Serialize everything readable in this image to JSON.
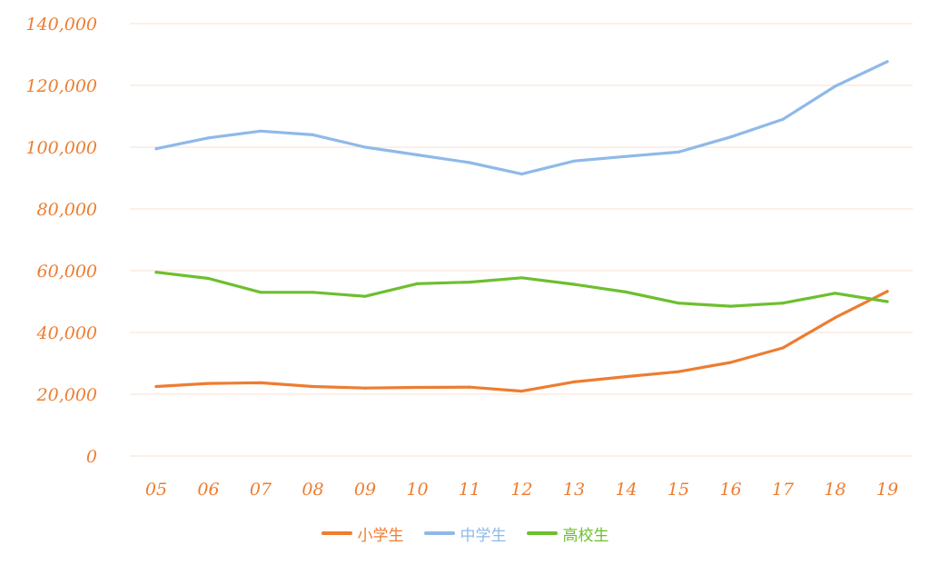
{
  "chart_data": {
    "type": "line",
    "categories": [
      "05",
      "06",
      "07",
      "08",
      "09",
      "10",
      "11",
      "12",
      "13",
      "14",
      "15",
      "16",
      "17",
      "18",
      "19"
    ],
    "series": [
      {
        "name": "小学生",
        "color": "#ED7D31",
        "values": [
          22500,
          23500,
          23700,
          22500,
          22000,
          22200,
          22300,
          21000,
          24000,
          25700,
          27300,
          30300,
          35000,
          44800,
          53300
        ]
      },
      {
        "name": "中学生",
        "color": "#8FB9E8",
        "values": [
          99500,
          103000,
          105200,
          104000,
          100000,
          97500,
          95000,
          91300,
          95500,
          97000,
          98400,
          103300,
          109000,
          119700,
          127700
        ]
      },
      {
        "name": "高校生",
        "color": "#6DBF2E",
        "values": [
          59500,
          57500,
          53000,
          53000,
          51700,
          55800,
          56300,
          57700,
          55600,
          53100,
          49500,
          48500,
          49500,
          52700,
          50000
        ]
      }
    ],
    "y_ticks": [
      "0",
      "20,000",
      "40,000",
      "60,000",
      "80,000",
      "100,000",
      "120,000",
      "140,000"
    ],
    "ylim": [
      0,
      140000
    ],
    "grid": true,
    "legend_position": "bottom",
    "tick_color": "#ED7D31",
    "grid_color": "#F6E0D0"
  }
}
